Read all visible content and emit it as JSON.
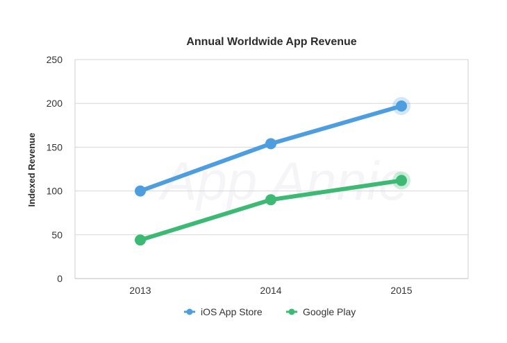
{
  "chart_data": {
    "type": "line",
    "title": "Annual Worldwide App Revenue",
    "xlabel": "",
    "ylabel": "Indexed Revenue",
    "categories": [
      "2013",
      "2014",
      "2015"
    ],
    "ylim": [
      0,
      250
    ],
    "yticks": [
      0,
      50,
      100,
      150,
      200,
      250
    ],
    "grid": true,
    "legend_position": "bottom-center",
    "series": [
      {
        "name": "iOS App Store",
        "values": [
          100,
          154,
          197
        ],
        "color": "#4c9ee0"
      },
      {
        "name": "Google Play",
        "values": [
          44,
          90,
          112
        ],
        "color": "#3cba74"
      }
    ]
  },
  "watermark": "App Annie"
}
